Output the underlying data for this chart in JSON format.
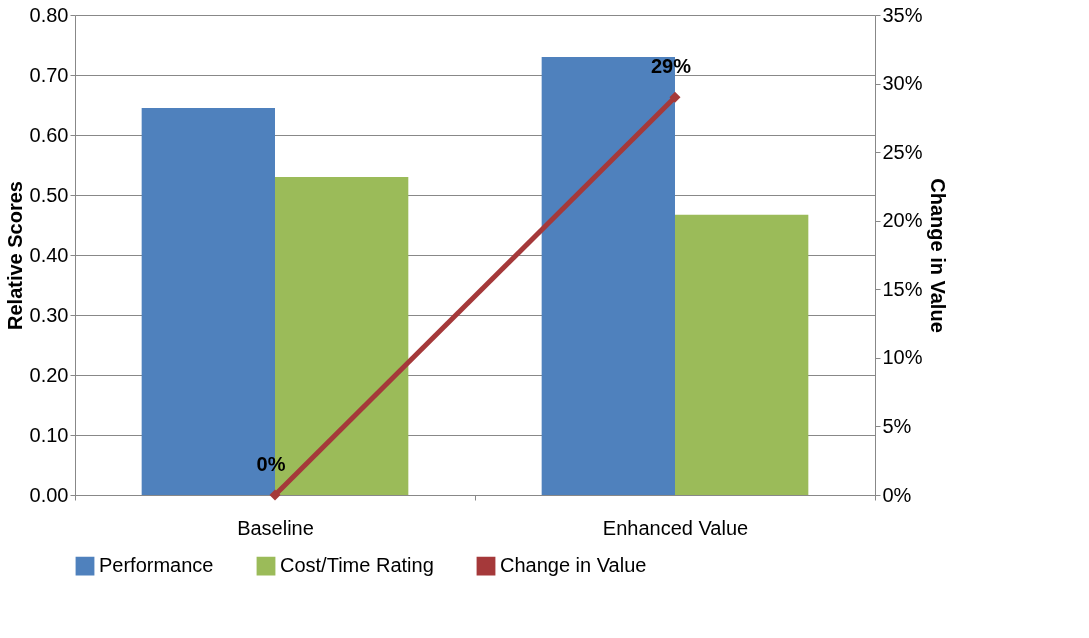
{
  "chart_data": {
    "type": "bar",
    "ylabel": "Relative Scores",
    "y2label": "Change in Value",
    "categories": [
      "Baseline",
      "Enhanced Value"
    ],
    "series": [
      {
        "name": "Performance",
        "type": "bar",
        "color": "#4f81bd",
        "values": [
          0.645,
          0.73
        ]
      },
      {
        "name": "Cost/Time Rating",
        "type": "bar",
        "color": "#9bbb59",
        "values": [
          0.53,
          0.467
        ]
      },
      {
        "name": "Change in Value",
        "type": "line",
        "axis": "y2",
        "color": "#a5393a",
        "marker": "diamond",
        "values": [
          0,
          29
        ],
        "value_labels": [
          "0%",
          "29%"
        ]
      }
    ],
    "ylim": [
      0,
      0.8
    ],
    "yticks": [
      {
        "value": 0,
        "label": "0.00"
      },
      {
        "value": 0.1,
        "label": "0.10"
      },
      {
        "value": 0.2,
        "label": "0.20"
      },
      {
        "value": 0.3,
        "label": "0.30"
      },
      {
        "value": 0.4,
        "label": "0.40"
      },
      {
        "value": 0.5,
        "label": "0.50"
      },
      {
        "value": 0.6,
        "label": "0.60"
      },
      {
        "value": 0.7,
        "label": "0.70"
      },
      {
        "value": 0.8,
        "label": "0.80"
      }
    ],
    "y2lim": [
      0,
      35
    ],
    "y2ticks": [
      {
        "value": 0,
        "label": "0%"
      },
      {
        "value": 5,
        "label": "5%"
      },
      {
        "value": 10,
        "label": "10%"
      },
      {
        "value": 15,
        "label": "15%"
      },
      {
        "value": 20,
        "label": "20%"
      },
      {
        "value": 25,
        "label": "25%"
      },
      {
        "value": 30,
        "label": "30%"
      },
      {
        "value": 35,
        "label": "35%"
      }
    ],
    "grid": "y",
    "legend": "bottom"
  }
}
